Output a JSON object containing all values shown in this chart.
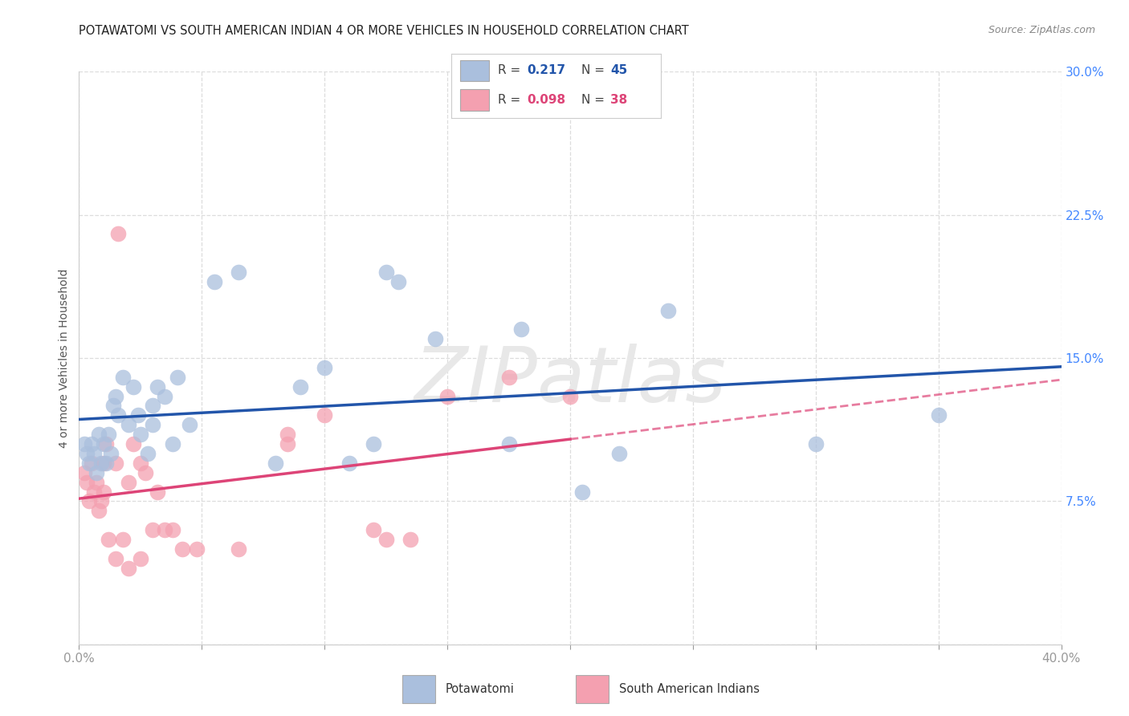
{
  "title": "POTAWATOMI VS SOUTH AMERICAN INDIAN 4 OR MORE VEHICLES IN HOUSEHOLD CORRELATION CHART",
  "source": "Source: ZipAtlas.com",
  "ylabel": "4 or more Vehicles in Household",
  "xlim": [
    0,
    40
  ],
  "ylim": [
    0,
    30
  ],
  "xlabel_vals": [
    0,
    5,
    10,
    15,
    20,
    25,
    30,
    35,
    40
  ],
  "ylabel_vals": [
    0,
    7.5,
    15.0,
    22.5,
    30.0
  ],
  "blue_fill": "#AABFDD",
  "pink_fill": "#F4A0B0",
  "blue_line": "#2255AA",
  "pink_line": "#DD4477",
  "grid_color": "#DDDDDD",
  "bg_color": "#FFFFFF",
  "potawatomi_x": [
    0.2,
    0.3,
    0.4,
    0.5,
    0.6,
    0.7,
    0.8,
    0.9,
    1.0,
    1.1,
    1.2,
    1.3,
    1.4,
    1.5,
    1.6,
    1.8,
    2.0,
    2.2,
    2.4,
    2.5,
    2.8,
    3.0,
    3.0,
    3.2,
    3.5,
    3.8,
    4.0,
    4.5,
    5.5,
    6.5,
    8.0,
    9.0,
    10.0,
    11.0,
    12.0,
    12.5,
    13.0,
    14.5,
    17.5,
    20.5,
    22.0,
    24.0,
    30.0,
    35.0,
    18.0
  ],
  "potawatomi_y": [
    10.5,
    10.0,
    9.5,
    10.5,
    10.0,
    9.0,
    11.0,
    9.5,
    10.5,
    9.5,
    11.0,
    10.0,
    12.5,
    13.0,
    12.0,
    14.0,
    11.5,
    13.5,
    12.0,
    11.0,
    10.0,
    11.5,
    12.5,
    13.5,
    13.0,
    10.5,
    14.0,
    11.5,
    19.0,
    19.5,
    9.5,
    13.5,
    14.5,
    9.5,
    10.5,
    19.5,
    19.0,
    16.0,
    10.5,
    8.0,
    10.0,
    17.5,
    10.5,
    12.0,
    16.5
  ],
  "sa_x": [
    0.2,
    0.3,
    0.4,
    0.5,
    0.6,
    0.7,
    0.8,
    0.9,
    1.0,
    1.1,
    1.2,
    1.5,
    1.6,
    1.8,
    2.0,
    2.2,
    2.5,
    2.7,
    3.0,
    3.2,
    3.5,
    3.8,
    4.2,
    4.8,
    6.5,
    8.5,
    8.5,
    10.0,
    12.0,
    12.5,
    13.5,
    15.0,
    17.5,
    20.0,
    1.0,
    2.5,
    1.5,
    2.0
  ],
  "sa_y": [
    9.0,
    8.5,
    7.5,
    9.5,
    8.0,
    8.5,
    7.0,
    7.5,
    9.5,
    10.5,
    5.5,
    9.5,
    21.5,
    5.5,
    8.5,
    10.5,
    9.5,
    9.0,
    6.0,
    8.0,
    6.0,
    6.0,
    5.0,
    5.0,
    5.0,
    11.0,
    10.5,
    12.0,
    6.0,
    5.5,
    5.5,
    13.0,
    14.0,
    13.0,
    8.0,
    4.5,
    4.5,
    4.0
  ],
  "r_blue": "0.217",
  "n_blue": "45",
  "r_pink": "0.098",
  "n_pink": "38",
  "watermark": "ZIPatlas",
  "title_color": "#222222",
  "source_color": "#888888",
  "tick_color": "#999999",
  "right_tick_color": "#4488FF"
}
